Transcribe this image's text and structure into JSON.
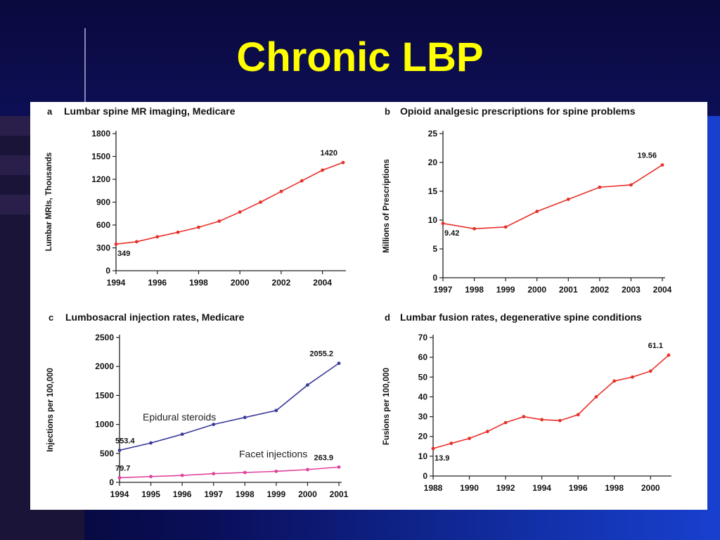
{
  "slide": {
    "title": "Chronic LBP"
  },
  "chart_data": [
    {
      "id": "a",
      "letter": "a",
      "type": "line",
      "title": "Lumbar spine MR imaging, Medicare",
      "ylabel": "Lumbar MRIs, Thousands",
      "xlabel": "",
      "ylim": [
        0,
        1800
      ],
      "yticks": [
        0,
        300,
        600,
        900,
        1200,
        1500,
        1800
      ],
      "xlim": [
        1994,
        2005
      ],
      "xticks": [
        1994,
        1996,
        1998,
        2000,
        2002,
        2004
      ],
      "x_tick_labels": [
        "1994",
        "1996",
        "1998",
        "2000",
        "2002",
        "2004"
      ],
      "series": [
        {
          "color": "#e8302a",
          "x": [
            1994,
            1995,
            1996,
            1997,
            1998,
            1999,
            2000,
            2001,
            2002,
            2003,
            2004,
            2005
          ],
          "values": [
            349,
            380,
            445,
            505,
            570,
            650,
            770,
            900,
            1040,
            1180,
            1320,
            1420
          ]
        }
      ],
      "data_labels": [
        {
          "text": "349",
          "x": 1994,
          "y": 349,
          "pos": "below"
        },
        {
          "text": "1420",
          "x": 2005,
          "y": 1420,
          "pos": "above-left"
        }
      ]
    },
    {
      "id": "b",
      "letter": "b",
      "type": "line",
      "title": "Opioid analgesic prescriptions for spine problems",
      "ylabel": "Millions of Prescriptions",
      "xlabel": "",
      "ylim": [
        0,
        25
      ],
      "yticks": [
        0,
        5,
        10,
        15,
        20,
        25
      ],
      "xlim": [
        1997,
        2004
      ],
      "xticks": [
        1997,
        1998,
        1999,
        2000,
        2001,
        2002,
        2003,
        2004
      ],
      "x_tick_labels": [
        "1997",
        "1998",
        "1999",
        "2000",
        "2001",
        "2002",
        "2003",
        "2004"
      ],
      "series": [
        {
          "color": "#e8302a",
          "x": [
            1997,
            1998,
            1999,
            2000,
            2001,
            2002,
            2003,
            2004
          ],
          "values": [
            9.42,
            8.5,
            8.8,
            11.5,
            13.6,
            15.7,
            16.1,
            19.56
          ]
        }
      ],
      "data_labels": [
        {
          "text": "9.42",
          "x": 1997,
          "y": 9.42,
          "pos": "below"
        },
        {
          "text": "19.56",
          "x": 2004,
          "y": 19.56,
          "pos": "above-left"
        }
      ]
    },
    {
      "id": "c",
      "letter": "c",
      "type": "line",
      "title": "Lumbosacral injection rates, Medicare",
      "ylabel": "Injections per 100,000",
      "xlabel": "",
      "ylim": [
        0,
        2500
      ],
      "yticks": [
        0,
        500,
        1000,
        1500,
        2000,
        2500
      ],
      "xlim": [
        1994,
        2001
      ],
      "xticks": [
        1994,
        1995,
        1996,
        1997,
        1998,
        1999,
        2000,
        2001
      ],
      "x_tick_labels": [
        "1994",
        "1995",
        "1996",
        "1997",
        "1998",
        "1999",
        "2000",
        "2001"
      ],
      "series": [
        {
          "name": "Epidural steroids",
          "color": "#3a3a9a",
          "x": [
            1994,
            1995,
            1996,
            1997,
            1998,
            1999,
            2000,
            2001
          ],
          "values": [
            553.4,
            680,
            830,
            1000,
            1120,
            1240,
            1680,
            2055.2
          ]
        },
        {
          "name": "Facet injections",
          "color": "#e0409a",
          "x": [
            1994,
            1995,
            1996,
            1997,
            1998,
            1999,
            2000,
            2001
          ],
          "values": [
            79.7,
            100,
            120,
            150,
            170,
            190,
            220,
            263.9
          ]
        }
      ],
      "data_labels": [
        {
          "text": "553.4",
          "x": 1994,
          "y": 553.4,
          "pos": "above"
        },
        {
          "text": "2055.2",
          "x": 2001,
          "y": 2055.2,
          "pos": "above-left"
        },
        {
          "text": "79.7",
          "x": 1994,
          "y": 79.7,
          "pos": "above"
        },
        {
          "text": "263.9",
          "x": 2001,
          "y": 263.9,
          "pos": "above-left"
        }
      ]
    },
    {
      "id": "d",
      "letter": "d",
      "type": "line",
      "title": "Lumbar fusion rates, degenerative spine conditions",
      "ylabel": "Fusions per 100,000",
      "xlabel": "",
      "ylim": [
        0,
        70
      ],
      "yticks": [
        0,
        10,
        20,
        30,
        40,
        50,
        60,
        70
      ],
      "xlim": [
        1988,
        2001
      ],
      "xticks": [
        1988,
        1990,
        1992,
        1994,
        1996,
        1998,
        2000
      ],
      "x_tick_labels": [
        "1988",
        "1990",
        "1992",
        "1994",
        "1996",
        "1998",
        "2000"
      ],
      "series": [
        {
          "color": "#e8302a",
          "x": [
            1988,
            1989,
            1990,
            1991,
            1992,
            1993,
            1994,
            1995,
            1996,
            1997,
            1998,
            1999,
            2000,
            2001
          ],
          "values": [
            13.9,
            16.5,
            19,
            22.5,
            27,
            30,
            28.5,
            28,
            31,
            40,
            48,
            50,
            53,
            61.1
          ]
        }
      ],
      "data_labels": [
        {
          "text": "13.9",
          "x": 1988,
          "y": 13.9,
          "pos": "below"
        },
        {
          "text": "61.1",
          "x": 2001,
          "y": 61.1,
          "pos": "above-left"
        }
      ]
    }
  ]
}
